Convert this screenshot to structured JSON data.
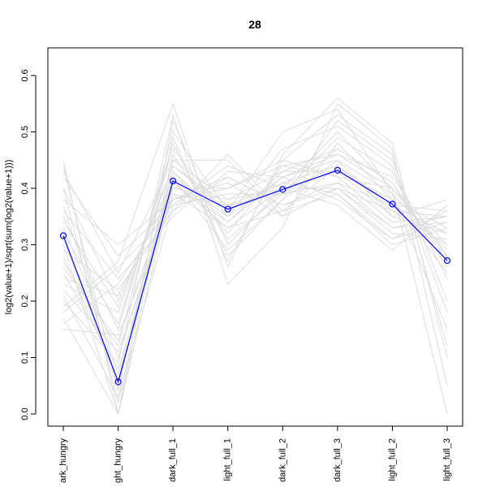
{
  "colors": {
    "background_lines": "#dddddd",
    "highlight": "#0000ff",
    "axis": "#000000"
  },
  "chart_data": {
    "type": "line",
    "title": "28",
    "xlabel": "",
    "ylabel": "log2(value+1)/sqrt(sum(log2(value+1)))",
    "categories": [
      "dark_hungry",
      "light_hungry",
      "dark_full_1",
      "light_full_1",
      "dark_full_2",
      "dark_full_3",
      "light_full_2",
      "light_full_3"
    ],
    "category_labels_shown": [
      "ark_hungry",
      "ght_hungry",
      "dark_full_1",
      "light_full_1",
      "dark_full_2",
      "dark_full_3",
      "light_full_2",
      "light_full_3"
    ],
    "ylim": [
      0,
      0.6
    ],
    "y_ticks": [
      0.0,
      0.1,
      0.2,
      0.3,
      0.4,
      0.5,
      0.6
    ],
    "y_tick_labels": [
      "0.0",
      "0.1",
      "0.2",
      "0.3",
      "0.4",
      "0.5",
      "0.6"
    ],
    "highlight_series": {
      "values": [
        0.316,
        0.057,
        0.413,
        0.363,
        0.398,
        0.432,
        0.372,
        0.272
      ]
    },
    "background_series": [
      [
        0.45,
        0.0,
        0.52,
        0.3,
        0.4,
        0.5,
        0.4,
        0.0
      ],
      [
        0.43,
        0.25,
        0.45,
        0.45,
        0.35,
        0.48,
        0.38,
        0.25
      ],
      [
        0.4,
        0.2,
        0.42,
        0.35,
        0.42,
        0.45,
        0.35,
        0.32
      ],
      [
        0.38,
        0.3,
        0.38,
        0.4,
        0.45,
        0.42,
        0.4,
        0.3
      ],
      [
        0.35,
        0.15,
        0.48,
        0.28,
        0.38,
        0.52,
        0.45,
        0.2
      ],
      [
        0.33,
        0.1,
        0.4,
        0.38,
        0.4,
        0.4,
        0.36,
        0.35
      ],
      [
        0.31,
        0.05,
        0.43,
        0.32,
        0.44,
        0.46,
        0.42,
        0.28
      ],
      [
        0.29,
        0.22,
        0.36,
        0.42,
        0.37,
        0.41,
        0.33,
        0.34
      ],
      [
        0.27,
        0.12,
        0.5,
        0.36,
        0.5,
        0.54,
        0.39,
        0.15
      ],
      [
        0.25,
        0.08,
        0.39,
        0.33,
        0.36,
        0.44,
        0.37,
        0.36
      ],
      [
        0.23,
        0.18,
        0.44,
        0.37,
        0.41,
        0.39,
        0.3,
        0.33
      ],
      [
        0.21,
        0.03,
        0.37,
        0.39,
        0.39,
        0.47,
        0.41,
        0.27
      ],
      [
        0.19,
        0.27,
        0.55,
        0.26,
        0.46,
        0.56,
        0.48,
        0.1
      ],
      [
        0.17,
        0.0,
        0.41,
        0.34,
        0.43,
        0.43,
        0.35,
        0.38
      ],
      [
        0.15,
        0.14,
        0.38,
        0.41,
        0.35,
        0.4,
        0.32,
        0.31
      ],
      [
        0.4,
        0.02,
        0.46,
        0.31,
        0.39,
        0.49,
        0.43,
        0.24
      ],
      [
        0.36,
        0.24,
        0.35,
        0.43,
        0.42,
        0.38,
        0.31,
        0.36
      ],
      [
        0.32,
        0.16,
        0.47,
        0.35,
        0.47,
        0.51,
        0.44,
        0.18
      ],
      [
        0.28,
        0.06,
        0.42,
        0.29,
        0.38,
        0.45,
        0.39,
        0.29
      ],
      [
        0.24,
        0.21,
        0.4,
        0.4,
        0.44,
        0.42,
        0.34,
        0.35
      ],
      [
        0.2,
        0.09,
        0.53,
        0.23,
        0.33,
        0.55,
        0.47,
        0.05
      ],
      [
        0.42,
        0.28,
        0.37,
        0.44,
        0.4,
        0.37,
        0.29,
        0.37
      ],
      [
        0.3,
        0.0,
        0.45,
        0.38,
        0.43,
        0.47,
        0.41,
        0.26
      ],
      [
        0.26,
        0.13,
        0.41,
        0.33,
        0.4,
        0.43,
        0.38,
        0.33
      ],
      [
        0.34,
        0.19,
        0.44,
        0.36,
        0.41,
        0.44,
        0.36,
        0.3
      ],
      [
        0.22,
        0.11,
        0.39,
        0.37,
        0.39,
        0.41,
        0.37,
        0.32
      ],
      [
        0.44,
        0.04,
        0.49,
        0.27,
        0.45,
        0.53,
        0.46,
        0.12
      ],
      [
        0.18,
        0.26,
        0.36,
        0.46,
        0.36,
        0.39,
        0.31,
        0.34
      ],
      [
        0.37,
        0.07,
        0.43,
        0.34,
        0.42,
        0.46,
        0.4,
        0.28
      ],
      [
        0.16,
        0.23,
        0.38,
        0.42,
        0.37,
        0.4,
        0.33,
        0.35
      ]
    ]
  }
}
